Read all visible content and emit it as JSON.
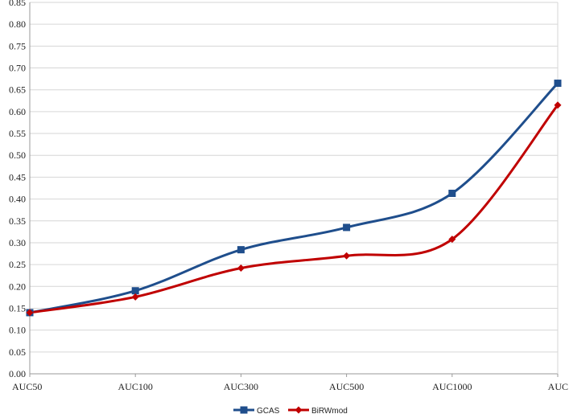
{
  "chart_data": {
    "type": "line",
    "title": "",
    "xlabel": "",
    "ylabel": "",
    "categories": [
      "AUC50",
      "AUC100",
      "AUC300",
      "AUC500",
      "AUC1000",
      "AUC"
    ],
    "ylim": [
      0,
      0.85
    ],
    "yticks": [
      "0.00",
      "0.05",
      "0.10",
      "0.15",
      "0.20",
      "0.25",
      "0.30",
      "0.35",
      "0.40",
      "0.45",
      "0.50",
      "0.55",
      "0.60",
      "0.65",
      "0.70",
      "0.75",
      "0.80",
      "0.85"
    ],
    "grid": true,
    "smooth": true,
    "legend_position": "bottom",
    "series": [
      {
        "name": "GCAS",
        "color": "#1f4e8c",
        "marker": "square",
        "values": [
          0.14,
          0.19,
          0.284,
          0.335,
          0.413,
          0.665
        ]
      },
      {
        "name": "BiRWmod",
        "color": "#c00000",
        "marker": "diamond",
        "values": [
          0.14,
          0.176,
          0.242,
          0.27,
          0.308,
          0.615
        ]
      }
    ]
  }
}
